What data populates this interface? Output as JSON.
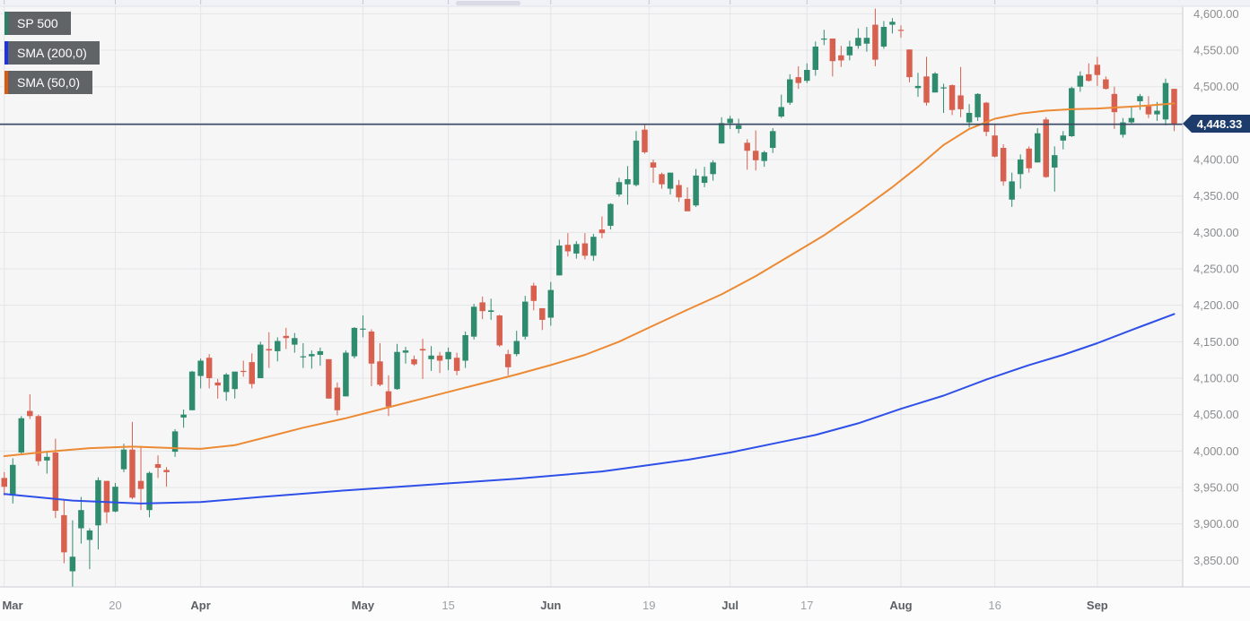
{
  "legend": [
    {
      "label": "SP 500",
      "color": "#2b8068"
    },
    {
      "label": "SMA (200,0)",
      "color": "#1e32e8"
    },
    {
      "label": "SMA (50,0)",
      "color": "#dd5a0d"
    }
  ],
  "y_axis": {
    "current_price": 4448.33,
    "current_price_label": "4,448.33",
    "levels": [
      {
        "v": 4600,
        "t": "4,600.00",
        "label_visible": true
      },
      {
        "v": 4550,
        "t": "4,550.00",
        "label_visible": true
      },
      {
        "v": 4500,
        "t": "4,500.00",
        "label_visible": true
      },
      {
        "v": 4450,
        "t": "",
        "label_visible": false
      },
      {
        "v": 4400,
        "t": "4,400.00",
        "label_visible": true
      },
      {
        "v": 4350,
        "t": "4,350.00",
        "label_visible": true
      },
      {
        "v": 4300,
        "t": "4,300.00",
        "label_visible": true
      },
      {
        "v": 4250,
        "t": "4,250.00",
        "label_visible": true
      },
      {
        "v": 4200,
        "t": "4,200.00",
        "label_visible": true
      },
      {
        "v": 4150,
        "t": "4,150.00",
        "label_visible": true
      },
      {
        "v": 4100,
        "t": "4,100.00",
        "label_visible": true
      },
      {
        "v": 4050,
        "t": "4,050.00",
        "label_visible": true
      },
      {
        "v": 4000,
        "t": "4,000.00",
        "label_visible": true
      },
      {
        "v": 3950,
        "t": "3,950.00",
        "label_visible": true
      },
      {
        "v": 3900,
        "t": "3,900.00",
        "label_visible": true
      },
      {
        "v": 3850,
        "t": "3,850.00",
        "label_visible": true
      }
    ]
  },
  "x_axis": {
    "ticks": [
      {
        "t": "Mar",
        "i": 0,
        "month": true
      },
      {
        "t": "20",
        "i": 13,
        "month": false
      },
      {
        "t": "Apr",
        "i": 23,
        "month": true
      },
      {
        "t": "May",
        "i": 42,
        "month": true
      },
      {
        "t": "15",
        "i": 52,
        "month": false
      },
      {
        "t": "Jun",
        "i": 64,
        "month": true
      },
      {
        "t": "19",
        "i": 75.5,
        "month": false
      },
      {
        "t": "Jul",
        "i": 85,
        "month": true
      },
      {
        "t": "17",
        "i": 94,
        "month": false
      },
      {
        "t": "Aug",
        "i": 105,
        "month": true
      },
      {
        "t": "16",
        "i": 116,
        "month": false
      },
      {
        "t": "Sep",
        "i": 128,
        "month": true
      }
    ]
  },
  "chart_data": {
    "type": "candlestick",
    "title": "SP 500",
    "xlabel": "",
    "ylabel": "",
    "ylim": [
      3813.5,
      4610.3
    ],
    "grid": true,
    "legend_position": "top-left",
    "current_price": 4448.33,
    "colors": {
      "up": "#2e8b6e",
      "down": "#d7604f",
      "sma200": "#2e4fe8",
      "sma50": "#ec8a33",
      "price_line": "#3a4a63",
      "badge_bg": "#1d3c6b",
      "chart_bg": "#f6f6f7",
      "grid": "#e4e5e8",
      "strip_bg": "#f1f2f7",
      "strip_tick": "#c3c8d6",
      "axis_border": "#c9ccd5"
    },
    "candle_format": [
      "date",
      "open",
      "high",
      "low",
      "close"
    ],
    "candles": [
      [
        "03-01",
        3963,
        3971,
        3939,
        3951
      ],
      [
        "03-02",
        3939,
        3990,
        3928,
        3981
      ],
      [
        "03-03",
        3998,
        4048,
        3995,
        4045
      ],
      [
        "03-06",
        4055,
        4078,
        4044,
        4048
      ],
      [
        "03-07",
        4048,
        4050,
        3980,
        3986
      ],
      [
        "03-08",
        3987,
        4000,
        3969,
        3992
      ],
      [
        "03-09",
        3998,
        4017,
        3908,
        3918
      ],
      [
        "03-10",
        3912,
        3934,
        3846,
        3861
      ],
      [
        "03-13",
        3835,
        3905,
        3809,
        3855
      ],
      [
        "03-14",
        3894,
        3937,
        3873,
        3919
      ],
      [
        "03-15",
        3878,
        3894,
        3838,
        3891
      ],
      [
        "03-16",
        3898,
        3964,
        3865,
        3960
      ],
      [
        "03-17",
        3959,
        3959,
        3901,
        3916
      ],
      [
        "03-20",
        3917,
        3956,
        3916,
        3951
      ],
      [
        "03-21",
        3975,
        4010,
        3971,
        4002
      ],
      [
        "03-22",
        4002,
        4040,
        3934,
        3936
      ],
      [
        "03-23",
        3959,
        4007,
        3919,
        3948
      ],
      [
        "03-24",
        3919,
        3972,
        3909,
        3970
      ],
      [
        "03-27",
        3982,
        3994,
        3963,
        3977
      ],
      [
        "03-28",
        3974,
        3978,
        3951,
        3971
      ],
      [
        "03-29",
        3999,
        4030,
        3992,
        4027
      ],
      [
        "03-30",
        4046,
        4057,
        4032,
        4050
      ],
      [
        "03-31",
        4056,
        4110,
        4056,
        4109
      ],
      [
        "04-03",
        4103,
        4127,
        4086,
        4124
      ],
      [
        "04-04",
        4128,
        4133,
        4086,
        4100
      ],
      [
        "04-05",
        4094,
        4099,
        4072,
        4090
      ],
      [
        "04-06",
        4081,
        4107,
        4069,
        4105
      ],
      [
        "04-10",
        4085,
        4109,
        4072,
        4109
      ],
      [
        "04-11",
        4110,
        4124,
        4102,
        4109
      ],
      [
        "04-12",
        4122,
        4134,
        4086,
        4092
      ],
      [
        "04-13",
        4100,
        4150,
        4100,
        4146
      ],
      [
        "04-14",
        4140,
        4163,
        4114,
        4138
      ],
      [
        "04-17",
        4137,
        4156,
        4123,
        4151
      ],
      [
        "04-18",
        4158,
        4169,
        4140,
        4155
      ],
      [
        "04-19",
        4146,
        4162,
        4135,
        4155
      ],
      [
        "04-20",
        4130,
        4148,
        4114,
        4130
      ],
      [
        "04-21",
        4130,
        4138,
        4113,
        4133
      ],
      [
        "04-24",
        4132,
        4142,
        4117,
        4137
      ],
      [
        "04-25",
        4126,
        4126,
        4072,
        4072
      ],
      [
        "04-26",
        4087,
        4094,
        4049,
        4056
      ],
      [
        "04-27",
        4075,
        4138,
        4075,
        4135
      ],
      [
        "04-28",
        4130,
        4170,
        4127,
        4169
      ],
      [
        "05-01",
        4167,
        4186,
        4156,
        4168
      ],
      [
        "05-02",
        4164,
        4167,
        4089,
        4120
      ],
      [
        "05-03",
        4123,
        4148,
        4089,
        4091
      ],
      [
        "05-04",
        4082,
        4104,
        4048,
        4061
      ],
      [
        "05-05",
        4085,
        4147,
        4084,
        4136
      ],
      [
        "05-08",
        4135,
        4143,
        4120,
        4138
      ],
      [
        "05-09",
        4126,
        4131,
        4117,
        4119
      ],
      [
        "05-10",
        4140,
        4154,
        4099,
        4138
      ],
      [
        "05-11",
        4126,
        4144,
        4110,
        4131
      ],
      [
        "05-12",
        4131,
        4136,
        4107,
        4124
      ],
      [
        "05-15",
        4126,
        4142,
        4111,
        4136
      ],
      [
        "05-16",
        4128,
        4135,
        4104,
        4110
      ],
      [
        "05-17",
        4124,
        4164,
        4114,
        4159
      ],
      [
        "05-18",
        4157,
        4202,
        4153,
        4198
      ],
      [
        "05-19",
        4204,
        4212,
        4181,
        4192
      ],
      [
        "05-22",
        4191,
        4209,
        4180,
        4193
      ],
      [
        "05-23",
        4186,
        4187,
        4143,
        4145
      ],
      [
        "05-24",
        4133,
        4139,
        4104,
        4115
      ],
      [
        "05-25",
        4133,
        4165,
        4130,
        4151
      ],
      [
        "05-26",
        4157,
        4213,
        4153,
        4205
      ],
      [
        "05-30",
        4227,
        4231,
        4193,
        4206
      ],
      [
        "05-31",
        4196,
        4196,
        4166,
        4180
      ],
      [
        "06-01",
        4183,
        4232,
        4172,
        4221
      ],
      [
        "06-02",
        4241,
        4290,
        4241,
        4282
      ],
      [
        "06-05",
        4283,
        4299,
        4267,
        4274
      ],
      [
        "06-06",
        4271,
        4288,
        4264,
        4284
      ],
      [
        "06-07",
        4285,
        4299,
        4263,
        4268
      ],
      [
        "06-08",
        4268,
        4298,
        4261,
        4294
      ],
      [
        "06-09",
        4304,
        4322,
        4292,
        4299
      ],
      [
        "06-12",
        4309,
        4340,
        4304,
        4339
      ],
      [
        "06-13",
        4352,
        4375,
        4349,
        4369
      ],
      [
        "06-14",
        4366,
        4391,
        4338,
        4373
      ],
      [
        "06-15",
        4365,
        4439,
        4363,
        4426
      ],
      [
        "06-16",
        4441,
        4448,
        4408,
        4410
      ],
      [
        "06-20",
        4396,
        4400,
        4368,
        4389
      ],
      [
        "06-21",
        4380,
        4382,
        4360,
        4366
      ],
      [
        "06-22",
        4360,
        4382,
        4352,
        4382
      ],
      [
        "06-23",
        4365,
        4372,
        4342,
        4348
      ],
      [
        "06-26",
        4346,
        4362,
        4329,
        4329
      ],
      [
        "06-27",
        4337,
        4387,
        4335,
        4378
      ],
      [
        "06-28",
        4368,
        4390,
        4362,
        4377
      ],
      [
        "06-29",
        4380,
        4399,
        4371,
        4396
      ],
      [
        "06-30",
        4422,
        4458,
        4422,
        4450
      ],
      [
        "07-03",
        4450,
        4460,
        4442,
        4456
      ],
      [
        "07-05",
        4442,
        4456,
        4436,
        4447
      ],
      [
        "07-06",
        4423,
        4428,
        4386,
        4412
      ],
      [
        "07-07",
        4412,
        4440,
        4385,
        4399
      ],
      [
        "07-10",
        4398,
        4412,
        4390,
        4410
      ],
      [
        "07-11",
        4416,
        4443,
        4409,
        4439
      ],
      [
        "07-12",
        4459,
        4489,
        4457,
        4472
      ],
      [
        "07-13",
        4478,
        4517,
        4475,
        4510
      ],
      [
        "07-14",
        4513,
        4528,
        4497,
        4505
      ],
      [
        "07-17",
        4508,
        4532,
        4505,
        4523
      ],
      [
        "07-18",
        4523,
        4562,
        4515,
        4555
      ],
      [
        "07-19",
        4566,
        4578,
        4557,
        4566
      ],
      [
        "07-20",
        4566,
        4566,
        4514,
        4535
      ],
      [
        "07-21",
        4543,
        4556,
        4527,
        4536
      ],
      [
        "07-24",
        4543,
        4563,
        4536,
        4555
      ],
      [
        "07-25",
        4556,
        4580,
        4552,
        4567
      ],
      [
        "07-26",
        4559,
        4582,
        4548,
        4567
      ],
      [
        "07-27",
        4585,
        4607,
        4528,
        4537
      ],
      [
        "07-28",
        4555,
        4590,
        4552,
        4582
      ],
      [
        "07-31",
        4585,
        4594,
        4573,
        4589
      ],
      [
        "08-01",
        4578,
        4584,
        4567,
        4577
      ],
      [
        "08-02",
        4551,
        4551,
        4506,
        4513
      ],
      [
        "08-03",
        4498,
        4519,
        4486,
        4501
      ],
      [
        "08-04",
        4514,
        4541,
        4474,
        4478
      ],
      [
        "08-07",
        4492,
        4520,
        4492,
        4518
      ],
      [
        "08-08",
        4499,
        4504,
        4464,
        4499
      ],
      [
        "08-09",
        4502,
        4503,
        4461,
        4468
      ],
      [
        "08-10",
        4488,
        4527,
        4458,
        4469
      ],
      [
        "08-11",
        4451,
        4476,
        4444,
        4464
      ],
      [
        "08-14",
        4458,
        4491,
        4453,
        4490
      ],
      [
        "08-15",
        4478,
        4479,
        4432,
        4438
      ],
      [
        "08-16",
        4433,
        4449,
        4403,
        4404
      ],
      [
        "08-17",
        4416,
        4421,
        4364,
        4370
      ],
      [
        "08-18",
        4345,
        4382,
        4335,
        4370
      ],
      [
        "08-21",
        4380,
        4407,
        4360,
        4400
      ],
      [
        "08-22",
        4415,
        4418,
        4382,
        4388
      ],
      [
        "08-23",
        4396,
        4443,
        4396,
        4436
      ],
      [
        "08-24",
        4455,
        4458,
        4375,
        4376
      ],
      [
        "08-25",
        4389,
        4418,
        4356,
        4406
      ],
      [
        "08-28",
        4426,
        4439,
        4414,
        4433
      ],
      [
        "08-29",
        4432,
        4500,
        4431,
        4498
      ],
      [
        "08-30",
        4500,
        4521,
        4493,
        4515
      ],
      [
        "08-31",
        4517,
        4532,
        4507,
        4508
      ],
      [
        "09-01",
        4530,
        4541,
        4501,
        4516
      ],
      [
        "09-05",
        4510,
        4514,
        4496,
        4497
      ],
      [
        "09-06",
        4490,
        4500,
        4442,
        4465
      ],
      [
        "09-07",
        4434,
        4457,
        4430,
        4451
      ],
      [
        "09-08",
        4451,
        4473,
        4448,
        4457
      ],
      [
        "09-11",
        4480,
        4490,
        4468,
        4487
      ],
      [
        "09-12",
        4473,
        4487,
        4457,
        4462
      ],
      [
        "09-13",
        4462,
        4479,
        4453,
        4467
      ],
      [
        "09-14",
        4455,
        4511,
        4447,
        4505
      ],
      [
        "09-15",
        4497,
        4497,
        4439,
        4448.33
      ]
    ],
    "series": [
      {
        "name": "SMA (200,0)",
        "type": "line",
        "color": "#2e4fe8",
        "points": [
          [
            0,
            3941
          ],
          [
            8,
            3932
          ],
          [
            16,
            3928
          ],
          [
            23,
            3930
          ],
          [
            30,
            3937
          ],
          [
            40,
            3946
          ],
          [
            50,
            3954
          ],
          [
            60,
            3962
          ],
          [
            64,
            3966
          ],
          [
            70,
            3972
          ],
          [
            75,
            3980
          ],
          [
            80,
            3988
          ],
          [
            85,
            3998
          ],
          [
            90,
            4010
          ],
          [
            95,
            4022
          ],
          [
            100,
            4038
          ],
          [
            105,
            4058
          ],
          [
            110,
            4076
          ],
          [
            115,
            4098
          ],
          [
            120,
            4118
          ],
          [
            124,
            4132
          ],
          [
            128,
            4148
          ],
          [
            132,
            4166
          ],
          [
            137,
            4188
          ]
        ]
      },
      {
        "name": "SMA (50,0)",
        "type": "line",
        "color": "#ec8a33",
        "points": [
          [
            0,
            3993
          ],
          [
            5,
            3999
          ],
          [
            10,
            4004
          ],
          [
            15,
            4006
          ],
          [
            20,
            4004
          ],
          [
            23,
            4003
          ],
          [
            27,
            4008
          ],
          [
            31,
            4020
          ],
          [
            35,
            4032
          ],
          [
            40,
            4045
          ],
          [
            45,
            4060
          ],
          [
            50,
            4075
          ],
          [
            55,
            4090
          ],
          [
            60,
            4105
          ],
          [
            64,
            4118
          ],
          [
            68,
            4132
          ],
          [
            72,
            4150
          ],
          [
            76,
            4172
          ],
          [
            80,
            4194
          ],
          [
            84,
            4215
          ],
          [
            88,
            4240
          ],
          [
            92,
            4268
          ],
          [
            96,
            4296
          ],
          [
            100,
            4328
          ],
          [
            104,
            4362
          ],
          [
            107,
            4390
          ],
          [
            110,
            4420
          ],
          [
            113,
            4442
          ],
          [
            116,
            4456
          ],
          [
            119,
            4463
          ],
          [
            122,
            4467
          ],
          [
            125,
            4469
          ],
          [
            128,
            4470
          ],
          [
            131,
            4472
          ],
          [
            134,
            4474
          ],
          [
            137,
            4477
          ]
        ]
      }
    ]
  }
}
